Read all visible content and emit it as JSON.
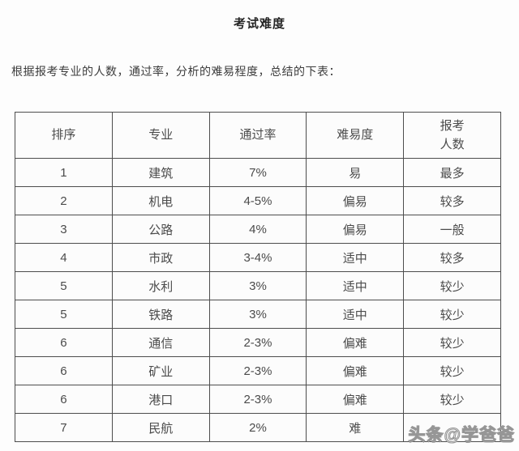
{
  "page": {
    "title": "考试难度",
    "intro": "根据报考专业的人数，通过率，分析的难易程度，总结的下表："
  },
  "table": {
    "headers": [
      "排序",
      "专业",
      "通过率",
      "难易度",
      "报考\n人数"
    ],
    "rows": [
      [
        "1",
        "建筑",
        "7%",
        "易",
        "最多"
      ],
      [
        "2",
        "机电",
        "4-5%",
        "偏易",
        "较多"
      ],
      [
        "3",
        "公路",
        "4%",
        "偏易",
        "一般"
      ],
      [
        "4",
        "市政",
        "3-4%",
        "适中",
        "较多"
      ],
      [
        "5",
        "水利",
        "3%",
        "适中",
        "较少"
      ],
      [
        "5",
        "铁路",
        "3%",
        "适中",
        "较少"
      ],
      [
        "6",
        "通信",
        "2-3%",
        "偏难",
        "较少"
      ],
      [
        "6",
        "矿业",
        "2-3%",
        "偏难",
        "较少"
      ],
      [
        "6",
        "港口",
        "2-3%",
        "偏难",
        "较少"
      ],
      [
        "7",
        "民航",
        "2%",
        "难",
        ""
      ]
    ]
  },
  "watermark": {
    "text": "头条@学爸爸"
  },
  "colors": {
    "border": "#4d4d4d",
    "text": "#4b4b4b",
    "background": "#fdfdfd",
    "watermark_outline": "#969696"
  }
}
